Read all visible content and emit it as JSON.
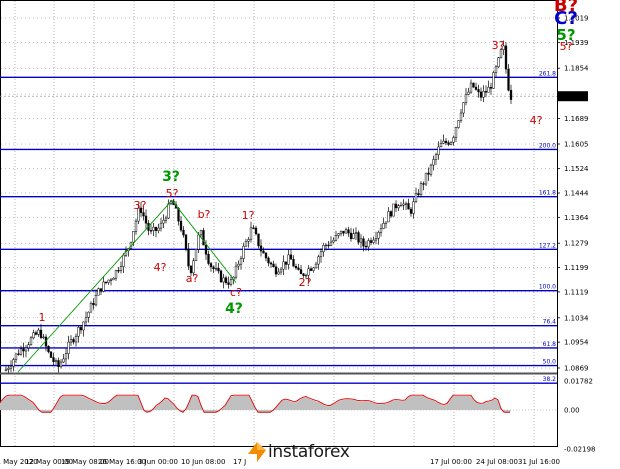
{
  "logo": {
    "text": "instaforex"
  },
  "price": {
    "current": "1.1762",
    "ticks": [
      "1.2019",
      "1.1939",
      "1.1854",
      "1.1769",
      "1.1689",
      "1.1605",
      "1.1524",
      "1.1444",
      "1.1364",
      "1.1279",
      "1.1199",
      "1.1119",
      "1.1034",
      "1.0954",
      "1.0869"
    ]
  },
  "osc": {
    "ticks": [
      "0.01782",
      "0.00",
      "-0.02198"
    ]
  },
  "dates": [
    "11 May 2020",
    "12 May 00:00",
    "19 May 08:00",
    "26 May 16:00",
    "3 Jun 00:00",
    "10 Jun 08:00",
    "17 J",
    "17 Jul 00:00",
    "24 Jul 08:00",
    "31 Jul 16:00"
  ],
  "fib_levels": [
    {
      "label": "261.8",
      "price": 1.1824
    },
    {
      "label": "200.0",
      "price": 1.1587
    },
    {
      "label": "161.8",
      "price": 1.1432
    },
    {
      "label": "127.2",
      "price": 1.1259
    },
    {
      "label": "100.0",
      "price": 1.1123
    },
    {
      "label": "76.4",
      "price": 1.1008
    },
    {
      "label": "61.8",
      "price": 1.0935
    },
    {
      "label": "50.0",
      "price": 1.0877
    },
    {
      "label": "38.2",
      "price": 1.0819
    }
  ],
  "wave_labels": [
    {
      "text": "B?",
      "color": "#cc0000"
    },
    {
      "text": "C?",
      "color": "#0000cc"
    },
    {
      "text": "5?",
      "color": "#009900"
    },
    {
      "text": "5?",
      "color": "#cc0000"
    },
    {
      "text": "3?",
      "color": "#cc0000"
    },
    {
      "text": "4?",
      "color": "#cc0000"
    },
    {
      "text": "3?",
      "color": "#009900"
    },
    {
      "text": "5?",
      "color": "#cc0000"
    },
    {
      "text": "3?",
      "color": "#cc0000"
    },
    {
      "text": "b?",
      "color": "#cc0000"
    },
    {
      "text": "1?",
      "color": "#cc0000"
    },
    {
      "text": "4?",
      "color": "#cc0000"
    },
    {
      "text": "a?",
      "color": "#cc0000"
    },
    {
      "text": "c?",
      "color": "#cc0000"
    },
    {
      "text": "4?",
      "color": "#009900"
    },
    {
      "text": "2?",
      "color": "#cc0000"
    },
    {
      "text": "1",
      "color": "#cc0000"
    }
  ],
  "colors": {
    "level_line": "#0000cc",
    "fib_text": "#0000cc",
    "bear": "#000000",
    "bull": "#ffffff",
    "wick": "#000000",
    "current": "#9aa0a6",
    "grid": "#888888",
    "osc_fill": "#c0c0c0",
    "osc_line": "#e00000",
    "trend": "#009900"
  }
}
